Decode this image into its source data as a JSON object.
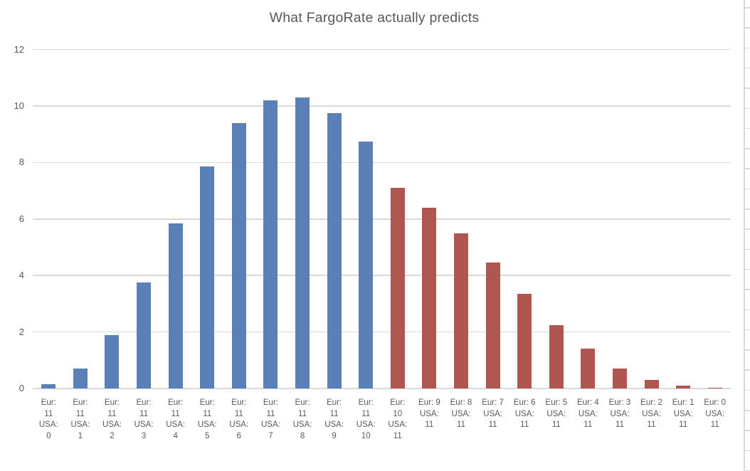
{
  "title": "What FargoRate actually predicts",
  "colors": {
    "eur_series": "#5B80B8",
    "usa_series": "#AF5650",
    "gridline": "#DADADA",
    "axis_line": "#D9D9D9",
    "text": "#595959"
  },
  "chart_data": {
    "type": "bar",
    "title": "What FargoRate actually predicts",
    "xlabel": "",
    "ylabel": "",
    "ylim": [
      0,
      12
    ],
    "yticks": [
      0,
      2,
      4,
      6,
      8,
      10,
      12
    ],
    "grid": true,
    "legend": "none",
    "categories": [
      "Eur: 11 USA: 0",
      "Eur: 11 USA: 1",
      "Eur: 11 USA: 2",
      "Eur: 11 USA: 3",
      "Eur: 11 USA: 4",
      "Eur: 11 USA: 5",
      "Eur: 11 USA: 6",
      "Eur: 11 USA: 7",
      "Eur: 11 USA: 8",
      "Eur: 11 USA: 9",
      "Eur: 11 USA: 10",
      "Eur: 10 USA: 11",
      "Eur: 9 USA: 11",
      "Eur: 8 USA: 11",
      "Eur: 7 USA: 11",
      "Eur: 6 USA: 11",
      "Eur: 5 USA: 11",
      "Eur: 4 USA: 11",
      "Eur: 3 USA: 11",
      "Eur: 2 USA: 11",
      "Eur: 1 USA: 11",
      "Eur: 0 USA: 11"
    ],
    "label_lines": [
      [
        "Eur:",
        "11",
        "USA:",
        "0"
      ],
      [
        "Eur:",
        "11",
        "USA:",
        "1"
      ],
      [
        "Eur:",
        "11",
        "USA:",
        "2"
      ],
      [
        "Eur:",
        "11",
        "USA:",
        "3"
      ],
      [
        "Eur:",
        "11",
        "USA:",
        "4"
      ],
      [
        "Eur:",
        "11",
        "USA:",
        "5"
      ],
      [
        "Eur:",
        "11",
        "USA:",
        "6"
      ],
      [
        "Eur:",
        "11",
        "USA:",
        "7"
      ],
      [
        "Eur:",
        "11",
        "USA:",
        "8"
      ],
      [
        "Eur:",
        "11",
        "USA:",
        "9"
      ],
      [
        "Eur:",
        "11",
        "USA:",
        "10"
      ],
      [
        "Eur:",
        "10",
        "USA:",
        "11"
      ],
      [
        "Eur: 9",
        "USA:",
        "11"
      ],
      [
        "Eur: 8",
        "USA:",
        "11"
      ],
      [
        "Eur: 7",
        "USA:",
        "11"
      ],
      [
        "Eur: 6",
        "USA:",
        "11"
      ],
      [
        "Eur: 5",
        "USA:",
        "11"
      ],
      [
        "Eur: 4",
        "USA:",
        "11"
      ],
      [
        "Eur: 3",
        "USA:",
        "11"
      ],
      [
        "Eur: 2",
        "USA:",
        "11"
      ],
      [
        "Eur: 1",
        "USA:",
        "11"
      ],
      [
        "Eur: 0",
        "USA:",
        "11"
      ]
    ],
    "values": [
      0.15,
      0.7,
      1.9,
      3.75,
      5.85,
      7.85,
      9.4,
      10.2,
      10.3,
      9.75,
      8.75,
      7.1,
      6.4,
      5.5,
      4.45,
      3.35,
      2.25,
      1.4,
      0.7,
      0.3,
      0.1,
      0.02
    ],
    "bar_groups": [
      "eur",
      "eur",
      "eur",
      "eur",
      "eur",
      "eur",
      "eur",
      "eur",
      "eur",
      "eur",
      "eur",
      "usa",
      "usa",
      "usa",
      "usa",
      "usa",
      "usa",
      "usa",
      "usa",
      "usa",
      "usa",
      "usa"
    ],
    "group_colors": {
      "eur": "#5B80B8",
      "usa": "#AF5650"
    }
  }
}
